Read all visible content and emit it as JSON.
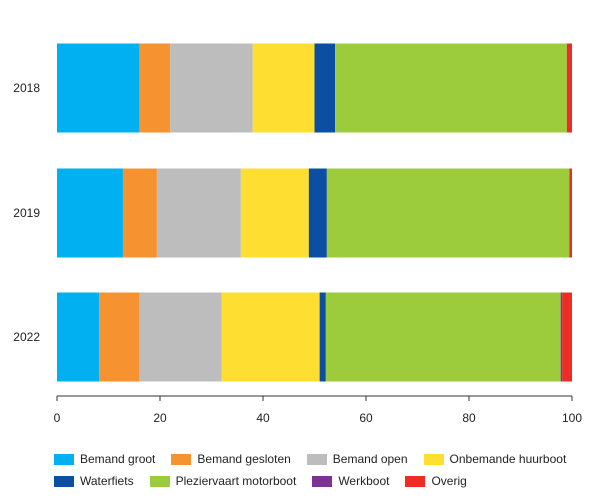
{
  "chart_data": {
    "type": "bar",
    "orientation": "horizontal",
    "stacked": true,
    "categories": [
      "2018",
      "2019",
      "2022"
    ],
    "series": [
      {
        "name": "Bemand groot",
        "color": "#00b0f0",
        "values": [
          16,
          12.8,
          8.2
        ]
      },
      {
        "name": "Bemand gesloten",
        "color": "#f79230",
        "values": [
          6,
          6.6,
          7.8
        ]
      },
      {
        "name": "Bemand open",
        "color": "#bdbdbd",
        "values": [
          16,
          16.3,
          16
        ]
      },
      {
        "name": "Onbemande huurboot",
        "color": "#ffde32",
        "values": [
          12,
          13.2,
          19
        ]
      },
      {
        "name": "Waterfiets",
        "color": "#0b4ea2",
        "values": [
          4,
          3.5,
          1.2
        ]
      },
      {
        "name": "Pleziervaart motorboot",
        "color": "#9ccc3c",
        "values": [
          45,
          47.1,
          45.6
        ]
      },
      {
        "name": "Werkboot",
        "color": "#7b3294",
        "values": [
          0,
          0,
          0.3
        ]
      },
      {
        "name": "Overig",
        "color": "#ee2b24",
        "values": [
          1,
          0.5,
          1.9
        ]
      }
    ],
    "xlim": [
      0,
      100
    ],
    "xticks": [
      0,
      20,
      40,
      60,
      80,
      100
    ],
    "title": "",
    "xlabel": "",
    "ylabel": "",
    "grid": false,
    "legend_position": "bottom"
  }
}
